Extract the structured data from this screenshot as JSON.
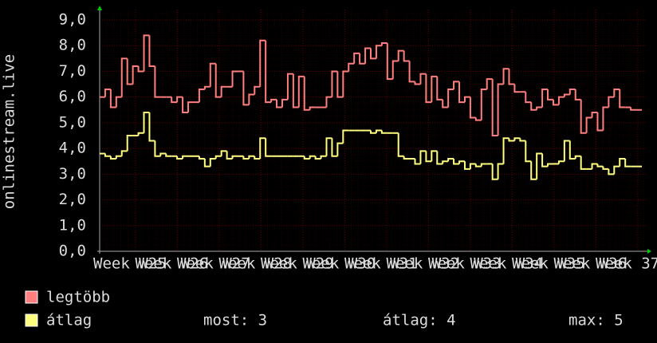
{
  "chart_data": {
    "type": "line",
    "step": true,
    "y_label": "onlinestream.live",
    "ylim": [
      0,
      9
    ],
    "yticks": [
      {
        "value": 0,
        "label": "0,0"
      },
      {
        "value": 1,
        "label": "1,0"
      },
      {
        "value": 2,
        "label": "2,0"
      },
      {
        "value": 3,
        "label": "3,0"
      },
      {
        "value": 4,
        "label": "4,0"
      },
      {
        "value": 5,
        "label": "5,0"
      },
      {
        "value": 6,
        "label": "6,0"
      },
      {
        "value": 7,
        "label": "7,0"
      },
      {
        "value": 8,
        "label": "8,0"
      },
      {
        "value": 9,
        "label": "9,0"
      }
    ],
    "grid": true,
    "x_labels": [
      "Week W25",
      "Week W26",
      "Week W27",
      "Week W28",
      "Week W29",
      "Week W30",
      "Week W31",
      "Week W32",
      "Week W33",
      "Week W34",
      "Week W35",
      "Week W36",
      "Week 37"
    ],
    "series": [
      {
        "name": "legtöbb",
        "color": "#ff7f7f",
        "values": [
          6.0,
          6.3,
          5.6,
          6.0,
          7.5,
          6.5,
          7.2,
          7.0,
          8.4,
          7.2,
          6.0,
          6.0,
          6.0,
          5.8,
          6.0,
          5.4,
          5.8,
          5.8,
          6.3,
          6.4,
          7.3,
          6.0,
          6.4,
          6.4,
          7.0,
          7.0,
          5.7,
          6.1,
          6.4,
          8.2,
          5.8,
          5.9,
          5.6,
          5.9,
          6.9,
          5.6,
          6.8,
          5.5,
          5.6,
          5.6,
          5.6,
          6.0,
          7.0,
          6.0,
          7.0,
          7.3,
          7.7,
          7.3,
          7.9,
          7.5,
          8.0,
          8.1,
          6.7,
          7.4,
          7.8,
          7.4,
          6.6,
          6.5,
          6.9,
          5.8,
          6.8,
          5.9,
          5.6,
          6.3,
          6.6,
          5.8,
          6.0,
          5.2,
          5.1,
          6.3,
          6.7,
          4.5,
          6.5,
          7.1,
          6.5,
          6.2,
          6.2,
          5.8,
          5.5,
          5.6,
          6.3,
          5.9,
          5.7,
          6.0,
          6.1,
          6.3,
          5.9,
          4.6,
          5.2,
          5.4,
          4.7,
          5.6,
          6.0,
          6.3,
          5.6,
          5.6,
          5.5,
          5.5
        ]
      },
      {
        "name": "átlag",
        "color": "#ffff7f",
        "values": [
          3.8,
          3.7,
          3.6,
          3.7,
          3.9,
          4.5,
          4.5,
          4.6,
          5.4,
          4.3,
          3.7,
          3.8,
          3.7,
          3.7,
          3.6,
          3.7,
          3.7,
          3.7,
          3.6,
          3.3,
          3.6,
          3.7,
          3.9,
          3.6,
          3.7,
          3.7,
          3.6,
          3.7,
          3.6,
          4.4,
          3.7,
          3.7,
          3.7,
          3.7,
          3.7,
          3.7,
          3.7,
          3.6,
          3.7,
          3.6,
          3.7,
          4.4,
          3.7,
          4.2,
          4.7,
          4.7,
          4.7,
          4.7,
          4.7,
          4.6,
          4.7,
          4.6,
          4.6,
          4.6,
          3.7,
          3.6,
          3.6,
          3.4,
          3.9,
          3.5,
          3.9,
          3.4,
          3.5,
          3.6,
          3.4,
          3.5,
          3.2,
          3.4,
          3.3,
          3.4,
          3.4,
          2.8,
          3.4,
          4.4,
          4.3,
          4.4,
          4.3,
          3.5,
          2.8,
          3.8,
          3.3,
          3.4,
          3.4,
          3.5,
          4.3,
          3.6,
          3.7,
          3.2,
          3.2,
          3.4,
          3.3,
          3.2,
          3.0,
          3.3,
          3.6,
          3.3,
          3.3,
          3.3
        ]
      }
    ],
    "stats": [
      "most: 3",
      "átlag: 4",
      "max: 5"
    ]
  }
}
